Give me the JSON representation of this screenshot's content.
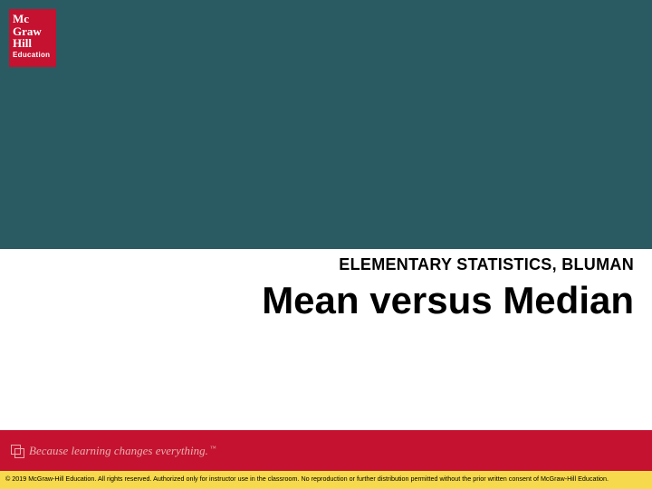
{
  "colors": {
    "teal_bg": "#2b5b62",
    "red": "#c41230",
    "yellow": "#f6d94c",
    "tagline_color": "#e8b0b0",
    "text_black": "#000000",
    "white": "#ffffff"
  },
  "logo": {
    "line1": "Mc",
    "line2": "Graw",
    "line3": "Hill",
    "sub": "Education"
  },
  "subtitle": "ELEMENTARY STATISTICS, BLUMAN",
  "title": "Mean versus Median",
  "tagline": "Because learning changes everything.",
  "tagline_tm": "™",
  "copyright": "© 2019 McGraw-Hill Education. All rights reserved. Authorized only for instructor use in the classroom. No reproduction or further distribution permitted without the prior written consent of McGraw-Hill Education."
}
